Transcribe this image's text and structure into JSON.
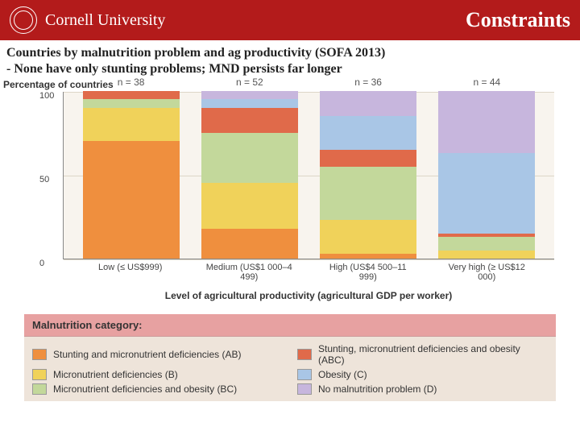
{
  "header": {
    "brand": "Cornell University",
    "title": "Constraints"
  },
  "subhead": {
    "line1": "Countries by malnutrition problem and ag productivity (SOFA 2013)",
    "line2": "- None have only stunting problems; MND persists far longer"
  },
  "chart": {
    "type": "stacked-bar",
    "background": "#f8f4ee",
    "ylabel": "Percentage of countries",
    "xlabel": "Level of agricultural productivity (agricultural GDP per worker)",
    "ylim": [
      0,
      100
    ],
    "yticks": [
      0,
      50,
      100
    ],
    "categories_full": [
      "Low (≤ US$999)",
      "Medium (US$1 000–4 499)",
      "High (US$4 500–11 999)",
      "Very high (≥ US$12 000)"
    ],
    "n_labels": [
      "n = 38",
      "n = 52",
      "n = 36",
      "n = 44"
    ],
    "series_order": [
      "AB",
      "B",
      "BC",
      "ABC",
      "C",
      "D"
    ],
    "colors": {
      "AB": "#ef8f3e",
      "B": "#f0d25a",
      "BC": "#c3d89b",
      "ABC": "#e06a4a",
      "C": "#a9c6e6",
      "D": "#c7b6dd"
    },
    "bars": [
      {
        "AB": 70,
        "B": 20,
        "BC": 5,
        "ABC": 5,
        "C": 0,
        "D": 0
      },
      {
        "AB": 18,
        "B": 27,
        "BC": 30,
        "ABC": 15,
        "C": 5,
        "D": 5
      },
      {
        "AB": 3,
        "B": 20,
        "BC": 32,
        "ABC": 10,
        "C": 20,
        "D": 15
      },
      {
        "AB": 0,
        "B": 5,
        "BC": 8,
        "ABC": 2,
        "C": 48,
        "D": 37
      }
    ]
  },
  "legend": {
    "title": "Malnutrition category:",
    "items": [
      {
        "key": "AB",
        "label": "Stunting and micronutrient deficiencies (AB)"
      },
      {
        "key": "ABC",
        "label": "Stunting, micronutrient deficiencies and obesity (ABC)"
      },
      {
        "key": "B",
        "label": "Micronutrient deficiencies (B)"
      },
      {
        "key": "C",
        "label": "Obesity (C)"
      },
      {
        "key": "BC",
        "label": "Micronutrient deficiencies and obesity (BC)"
      },
      {
        "key": "D",
        "label": "No malnutrition problem (D)"
      }
    ]
  }
}
